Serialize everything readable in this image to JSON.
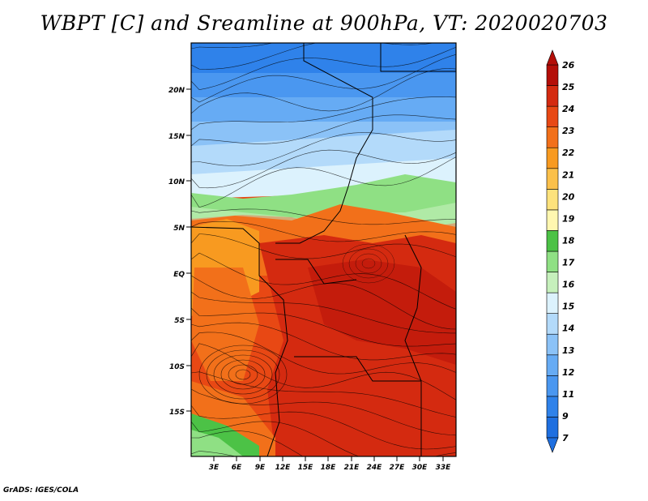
{
  "title": "WBPT [C] and Sreamline at 900hPa, VT: 2020020703",
  "footer": "GrADS: IGES/COLA",
  "map": {
    "lat_labels": [
      "20N",
      "15N",
      "10N",
      "5N",
      "EQ",
      "5S",
      "10S",
      "15S"
    ],
    "lon_labels": [
      "3E",
      "6E",
      "9E",
      "12E",
      "15E",
      "18E",
      "21E",
      "24E",
      "27E",
      "30E",
      "33E"
    ]
  },
  "colorbar": {
    "labels": [
      "7",
      "9",
      "11",
      "12",
      "13",
      "14",
      "15",
      "16",
      "17",
      "18",
      "19",
      "20",
      "21",
      "22",
      "23",
      "24",
      "25",
      "26"
    ],
    "colors": [
      "#1e6fe0",
      "#2f82ea",
      "#4a97f0",
      "#66abf4",
      "#8bc2f7",
      "#b3dafa",
      "#dcf2fd",
      "#c6f0bc",
      "#8fe084",
      "#4cc246",
      "#fff7b0",
      "#fde27c",
      "#fbc04a",
      "#f89a20",
      "#f2701a",
      "#e84814",
      "#d42a10",
      "#b40e08"
    ]
  }
}
